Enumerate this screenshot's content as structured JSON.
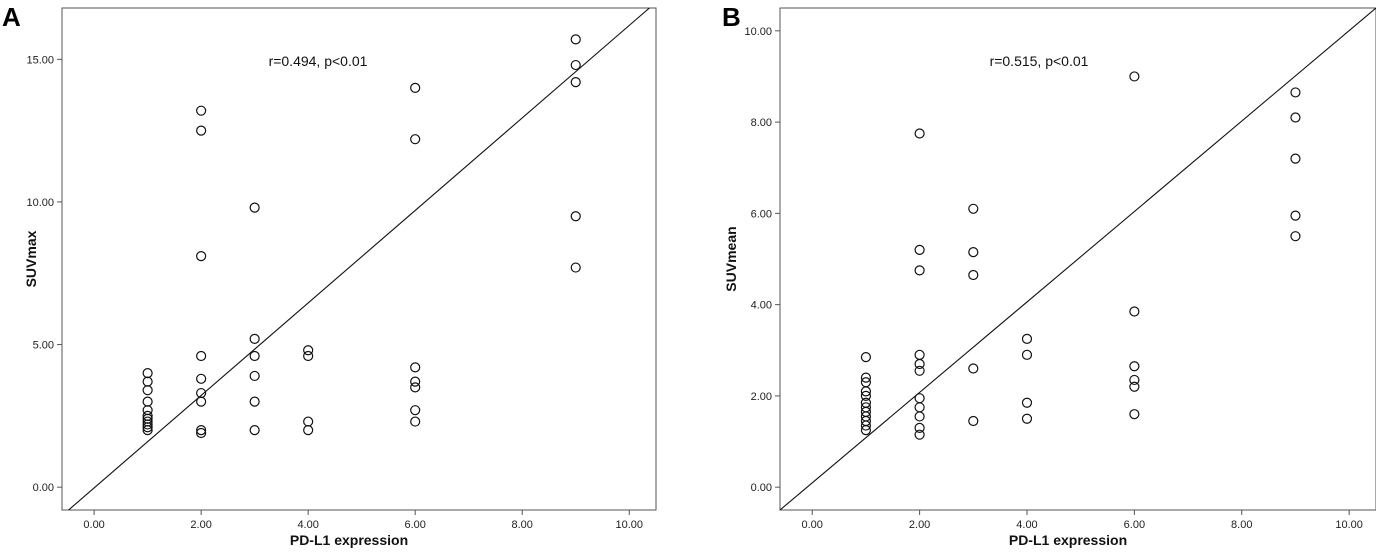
{
  "panel_labels": [
    "A",
    "B"
  ],
  "chart_data": [
    {
      "type": "scatter",
      "panel": "A",
      "title": "",
      "xlabel": "PD-L1 expression",
      "ylabel": "SUVmax",
      "annotation": "r=0.494, p<0.01",
      "xlim": [
        -0.6,
        10.5
      ],
      "ylim": [
        -0.8,
        16.8
      ],
      "xticks": [
        "0.00",
        "2.00",
        "4.00",
        "6.00",
        "8.00",
        "10.00"
      ],
      "yticks": [
        "0.00",
        "5.00",
        "10.00",
        "15.00"
      ],
      "fit_line": [
        [
          -0.6,
          -1.0
        ],
        [
          10.5,
          17.0
        ]
      ],
      "points": [
        [
          1,
          2.0
        ],
        [
          1,
          2.1
        ],
        [
          1,
          2.2
        ],
        [
          1,
          2.3
        ],
        [
          1,
          2.4
        ],
        [
          1,
          2.5
        ],
        [
          1,
          2.7
        ],
        [
          1,
          3.0
        ],
        [
          1,
          3.4
        ],
        [
          1,
          3.7
        ],
        [
          1,
          4.0
        ],
        [
          2,
          1.9
        ],
        [
          2,
          2.0
        ],
        [
          2,
          3.0
        ],
        [
          2,
          3.3
        ],
        [
          2,
          3.8
        ],
        [
          2,
          4.6
        ],
        [
          2,
          8.1
        ],
        [
          2,
          12.5
        ],
        [
          2,
          13.2
        ],
        [
          3,
          2.0
        ],
        [
          3,
          3.0
        ],
        [
          3,
          3.9
        ],
        [
          3,
          4.6
        ],
        [
          3,
          5.2
        ],
        [
          3,
          9.8
        ],
        [
          4,
          2.0
        ],
        [
          4,
          2.3
        ],
        [
          4,
          4.6
        ],
        [
          4,
          4.8
        ],
        [
          6,
          2.3
        ],
        [
          6,
          2.7
        ],
        [
          6,
          3.5
        ],
        [
          6,
          3.7
        ],
        [
          6,
          4.2
        ],
        [
          6,
          12.2
        ],
        [
          6,
          14.0
        ],
        [
          9,
          7.7
        ],
        [
          9,
          9.5
        ],
        [
          9,
          14.2
        ],
        [
          9,
          14.8
        ],
        [
          9,
          15.7
        ]
      ],
      "grid": false,
      "legend": "none"
    },
    {
      "type": "scatter",
      "panel": "B",
      "title": "",
      "xlabel": "PD-L1 expression",
      "ylabel": "SUVmean",
      "annotation": "r=0.515, p<0.01",
      "xlim": [
        -0.6,
        10.5
      ],
      "ylim": [
        -0.5,
        10.5
      ],
      "xticks": [
        "0.00",
        "2.00",
        "4.00",
        "6.00",
        "8.00",
        "10.00"
      ],
      "yticks": [
        "0.00",
        "2.00",
        "4.00",
        "6.00",
        "8.00",
        "10.00"
      ],
      "fit_line": [
        [
          -0.6,
          -0.5
        ],
        [
          10.5,
          10.5
        ]
      ],
      "points": [
        [
          1,
          1.25
        ],
        [
          1,
          1.35
        ],
        [
          1,
          1.45
        ],
        [
          1,
          1.55
        ],
        [
          1,
          1.65
        ],
        [
          1,
          1.75
        ],
        [
          1,
          1.85
        ],
        [
          1,
          2.0
        ],
        [
          1,
          2.1
        ],
        [
          1,
          2.3
        ],
        [
          1,
          2.4
        ],
        [
          1,
          2.85
        ],
        [
          2,
          1.15
        ],
        [
          2,
          1.3
        ],
        [
          2,
          1.55
        ],
        [
          2,
          1.75
        ],
        [
          2,
          1.95
        ],
        [
          2,
          2.55
        ],
        [
          2,
          2.7
        ],
        [
          2,
          2.9
        ],
        [
          2,
          4.75
        ],
        [
          2,
          5.2
        ],
        [
          2,
          7.75
        ],
        [
          3,
          1.45
        ],
        [
          3,
          2.6
        ],
        [
          3,
          4.65
        ],
        [
          3,
          5.15
        ],
        [
          3,
          6.1
        ],
        [
          4,
          1.5
        ],
        [
          4,
          1.85
        ],
        [
          4,
          2.9
        ],
        [
          4,
          3.25
        ],
        [
          6,
          1.6
        ],
        [
          6,
          2.2
        ],
        [
          6,
          2.35
        ],
        [
          6,
          2.65
        ],
        [
          6,
          3.85
        ],
        [
          6,
          9.0
        ],
        [
          9,
          5.5
        ],
        [
          9,
          5.95
        ],
        [
          9,
          7.2
        ],
        [
          9,
          8.1
        ],
        [
          9,
          8.65
        ]
      ],
      "grid": false,
      "legend": "none"
    }
  ]
}
